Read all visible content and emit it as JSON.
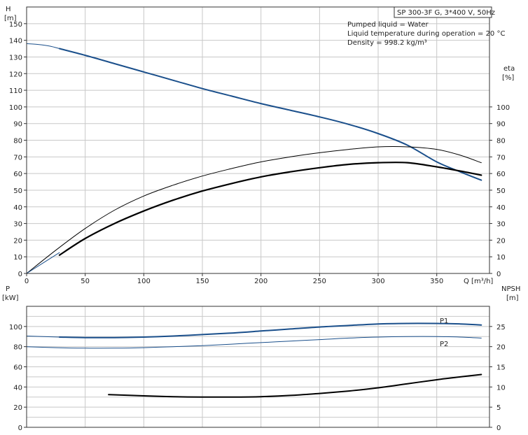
{
  "info": {
    "title": "SP 300-3F G, 3*400 V, 50Hz",
    "lines": [
      "Pumped liquid = Water",
      "Liquid temperature during operation = 20 °C",
      "Density = 998.2 kg/m³"
    ]
  },
  "colors": {
    "blue": "#1a4f8b",
    "black": "#000000",
    "grid": "#c8c8c8"
  },
  "chart_data": [
    {
      "type": "line",
      "name": "top",
      "x_label": "Q [m³/h]",
      "xlim": [
        0,
        395
      ],
      "x_ticks": [
        0,
        50,
        100,
        150,
        200,
        250,
        300,
        350
      ],
      "y_left": {
        "label_top": "H",
        "label_bottom": "[m]",
        "lim": [
          0,
          160
        ],
        "ticks": [
          0,
          10,
          20,
          30,
          40,
          50,
          60,
          70,
          80,
          90,
          100,
          110,
          120,
          130,
          140,
          150
        ]
      },
      "y_right": {
        "label_top": "eta",
        "label_bottom": "[%]",
        "lim": [
          0,
          160
        ],
        "ticks": [
          0,
          10,
          20,
          30,
          40,
          50,
          60,
          70,
          80,
          90,
          100
        ]
      },
      "series": [
        {
          "role": "H thin",
          "color": "#1a4f8b",
          "width": 1,
          "points": [
            [
              0,
              138
            ],
            [
              10,
              137.5
            ],
            [
              20,
              136.5
            ],
            [
              28,
              135
            ]
          ]
        },
        {
          "role": "H",
          "color": "#1a4f8b",
          "width": 2,
          "points": [
            [
              28,
              135
            ],
            [
              50,
              131
            ],
            [
              75,
              126
            ],
            [
              100,
              121
            ],
            [
              125,
              116
            ],
            [
              150,
              111
            ],
            [
              175,
              106.5
            ],
            [
              200,
              102
            ],
            [
              225,
              98
            ],
            [
              250,
              94
            ],
            [
              275,
              89.5
            ],
            [
              300,
              84
            ],
            [
              325,
              77
            ],
            [
              350,
              67
            ],
            [
              370,
              61
            ],
            [
              388,
              56
            ]
          ]
        },
        {
          "role": "eta thin",
          "color": "#000000",
          "width": 1,
          "points": [
            [
              0,
              0
            ],
            [
              25,
              14
            ],
            [
              50,
              27
            ],
            [
              75,
              38
            ],
            [
              100,
              46.5
            ],
            [
              125,
              53
            ],
            [
              150,
              58.5
            ],
            [
              175,
              63
            ],
            [
              200,
              67
            ],
            [
              225,
              70
            ],
            [
              250,
              72.5
            ],
            [
              275,
              74.5
            ],
            [
              300,
              76
            ],
            [
              325,
              76
            ],
            [
              350,
              74.5
            ],
            [
              370,
              71
            ],
            [
              388,
              66.5
            ]
          ]
        },
        {
          "role": "eta",
          "color": "#000000",
          "width": 2.2,
          "points": [
            [
              28,
              11
            ],
            [
              50,
              21
            ],
            [
              75,
              30
            ],
            [
              100,
              37.5
            ],
            [
              125,
              44
            ],
            [
              150,
              49.5
            ],
            [
              175,
              54
            ],
            [
              200,
              58
            ],
            [
              225,
              61
            ],
            [
              250,
              63.5
            ],
            [
              275,
              65.5
            ],
            [
              300,
              66.5
            ],
            [
              325,
              66.5
            ],
            [
              350,
              64
            ],
            [
              370,
              61.5
            ],
            [
              388,
              59
            ]
          ]
        },
        {
          "role": "diag thin",
          "color": "#1a4f8b",
          "width": 1,
          "points": [
            [
              0,
              0
            ],
            [
              28,
              12.5
            ]
          ]
        }
      ]
    },
    {
      "type": "line",
      "name": "bottom",
      "xlim": [
        0,
        395
      ],
      "y_left": {
        "label_top": "P",
        "label_bottom": "[kW]",
        "lim": [
          0,
          120
        ],
        "ticks": [
          0,
          20,
          40,
          60,
          80,
          100
        ]
      },
      "y_right": {
        "label_top": "NPSH",
        "label_bottom": "[m]",
        "lim": [
          0,
          30
        ],
        "ticks": [
          0,
          5,
          10,
          15,
          20,
          25
        ]
      },
      "series": [
        {
          "name": "P1",
          "color": "#1a4f8b",
          "width": 2,
          "points": [
            [
              28,
              89.5
            ],
            [
              50,
              89
            ],
            [
              75,
              89
            ],
            [
              100,
              89.5
            ],
            [
              125,
              90.5
            ],
            [
              150,
              92
            ],
            [
              175,
              93.5
            ],
            [
              200,
              95.5
            ],
            [
              225,
              97.5
            ],
            [
              250,
              99.5
            ],
            [
              275,
              101
            ],
            [
              300,
              102.5
            ],
            [
              325,
              103
            ],
            [
              350,
              103
            ],
            [
              370,
              102.5
            ],
            [
              388,
              101.5
            ]
          ]
        },
        {
          "name": "P1 thin",
          "color": "#1a4f8b",
          "width": 1,
          "points": [
            [
              0,
              90.5
            ],
            [
              28,
              89.5
            ]
          ]
        },
        {
          "name": "P2",
          "color": "#1a4f8b",
          "width": 1,
          "points": [
            [
              0,
              80
            ],
            [
              25,
              79
            ],
            [
              50,
              78.5
            ],
            [
              75,
              78.5
            ],
            [
              100,
              79
            ],
            [
              125,
              80
            ],
            [
              150,
              81
            ],
            [
              175,
              82.5
            ],
            [
              200,
              84
            ],
            [
              225,
              85.5
            ],
            [
              250,
              87
            ],
            [
              275,
              88.5
            ],
            [
              300,
              89.5
            ],
            [
              325,
              90
            ],
            [
              350,
              90
            ],
            [
              370,
              89.5
            ],
            [
              388,
              88.5
            ]
          ]
        },
        {
          "name": "NPSH",
          "color": "#000000",
          "width": 2,
          "axis": "right",
          "points": [
            [
              70,
              8.1
            ],
            [
              100,
              7.8
            ],
            [
              125,
              7.6
            ],
            [
              150,
              7.5
            ],
            [
              175,
              7.5
            ],
            [
              200,
              7.6
            ],
            [
              225,
              7.9
            ],
            [
              250,
              8.4
            ],
            [
              275,
              9.0
            ],
            [
              300,
              9.8
            ],
            [
              325,
              10.8
            ],
            [
              350,
              11.8
            ],
            [
              370,
              12.5
            ],
            [
              388,
              13.1
            ]
          ]
        }
      ],
      "labels": [
        "P1",
        "P2"
      ]
    }
  ]
}
